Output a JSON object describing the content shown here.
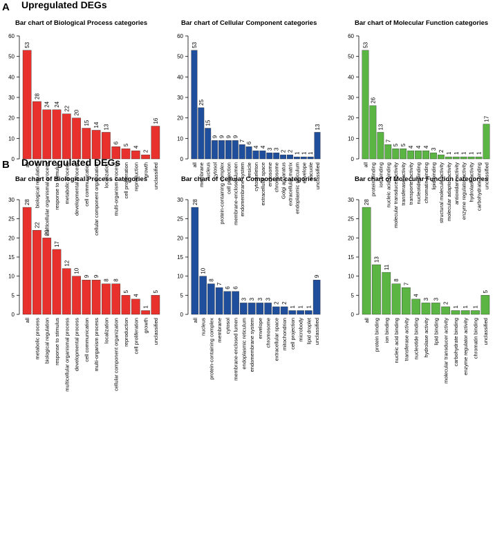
{
  "sections": [
    {
      "letter": "A",
      "title": "Upregulated DEGs"
    },
    {
      "letter": "B",
      "title": "Downregulated DEGs"
    }
  ],
  "chart_data": [
    {
      "type": "bar",
      "section": "A",
      "color": "#e8312c",
      "title": "Bar chart of Biological Process categories",
      "ylim": [
        0,
        60
      ],
      "yticks": [
        0,
        10,
        20,
        30,
        40,
        50,
        60
      ],
      "categories": [
        "all",
        "biological regulation",
        "multicellular organismal process",
        "response to stimulus",
        "metabolic process",
        "developmental process",
        "cell communication",
        "cellular component organization",
        "localization",
        "multi-organism process",
        "cell proliferation",
        "reproduction",
        "growth",
        "unclassified"
      ],
      "values": [
        53,
        28,
        24,
        24,
        22,
        20,
        15,
        14,
        13,
        6,
        5,
        4,
        2,
        16
      ]
    },
    {
      "type": "bar",
      "section": "A",
      "color": "#1f4e9c",
      "title": "Bar chart of Cellular Component categories",
      "ylim": [
        0,
        60
      ],
      "yticks": [
        0,
        10,
        20,
        30,
        40,
        50,
        60
      ],
      "categories": [
        "all",
        "membrane",
        "nucleus",
        "cytosol",
        "protein-containing complex",
        "cell projection",
        "membrane-enclosed lumen",
        "endomembrane system",
        "vesicle",
        "cytoskeleton",
        "extracellular space",
        "endosome",
        "chromosome",
        "Golgi apparatus",
        "extracellular matrix",
        "endoplasmic reticulum",
        "envelope",
        "vacuole",
        "unclassified"
      ],
      "values": [
        53,
        25,
        15,
        9,
        9,
        9,
        9,
        7,
        6,
        4,
        4,
        3,
        3,
        2,
        2,
        1,
        1,
        1,
        13
      ]
    },
    {
      "type": "bar",
      "section": "A",
      "color": "#5ab543",
      "title": "Bar chart of Molecular Function categories",
      "ylim": [
        0,
        60
      ],
      "yticks": [
        0,
        10,
        20,
        30,
        40,
        50,
        60
      ],
      "categories": [
        "all",
        "protein binding",
        "ion binding",
        "nucleic acid binding",
        "molecular transducer activity",
        "transferase activity",
        "transporter activity",
        "nucleotide binding",
        "chromatin binding",
        "lipid binding",
        "structural molecule activity",
        "molecular adaptor activity",
        "antioxidant activity",
        "enzyme regulator activity",
        "hydrolase activity",
        "carbohydrate binding",
        "unclassified"
      ],
      "values": [
        53,
        26,
        13,
        7,
        5,
        5,
        4,
        4,
        4,
        3,
        2,
        1,
        1,
        1,
        1,
        1,
        17
      ]
    },
    {
      "type": "bar",
      "section": "B",
      "color": "#e8312c",
      "title": "Bar chart of Biological Process categories",
      "ylim": [
        0,
        30
      ],
      "yticks": [
        0,
        5,
        10,
        15,
        20,
        25,
        30
      ],
      "categories": [
        "all",
        "metabolic process",
        "biological regulation",
        "response to stimulus",
        "multicellular organismal process",
        "developmental process",
        "cell communication",
        "multi-organism process",
        "localization",
        "cellular component organization",
        "reproduction",
        "cell proliferation",
        "growth",
        "unclassified"
      ],
      "values": [
        28,
        22,
        20,
        17,
        12,
        10,
        9,
        9,
        8,
        8,
        5,
        4,
        1,
        5
      ]
    },
    {
      "type": "bar",
      "section": "B",
      "color": "#1f4e9c",
      "title": "Bar chart of Cellular Component categories",
      "ylim": [
        0,
        30
      ],
      "yticks": [
        0,
        5,
        10,
        15,
        20,
        25,
        30
      ],
      "categories": [
        "all",
        "nucleus",
        "protein-containing complex",
        "membrane",
        "cytosol",
        "membrane-enclosed lumen",
        "endoplasmic reticulum",
        "endomembrane system",
        "envelope",
        "chromosome",
        "extracellular space",
        "mitochondrion",
        "cell projection",
        "microbody",
        "lipid droplet",
        "unclassified"
      ],
      "values": [
        28,
        10,
        8,
        7,
        6,
        6,
        3,
        3,
        3,
        3,
        2,
        2,
        1,
        1,
        1,
        9
      ]
    },
    {
      "type": "bar",
      "section": "B",
      "color": "#5ab543",
      "title": "Bar chart of Molecular Function categories",
      "ylim": [
        0,
        30
      ],
      "yticks": [
        0,
        5,
        10,
        15,
        20,
        25,
        30
      ],
      "categories": [
        "all",
        "protein binding",
        "ion binding",
        "nucleic acid binding",
        "transferase activity",
        "nucleotide binding",
        "hydrolase activity",
        "lipid binding",
        "molecular transducer activity",
        "carbohydrate binding",
        "enzyme regulator activity",
        "chromatin binding",
        "unclassified"
      ],
      "values": [
        28,
        13,
        11,
        8,
        7,
        4,
        3,
        3,
        2,
        1,
        1,
        1,
        5
      ]
    }
  ]
}
